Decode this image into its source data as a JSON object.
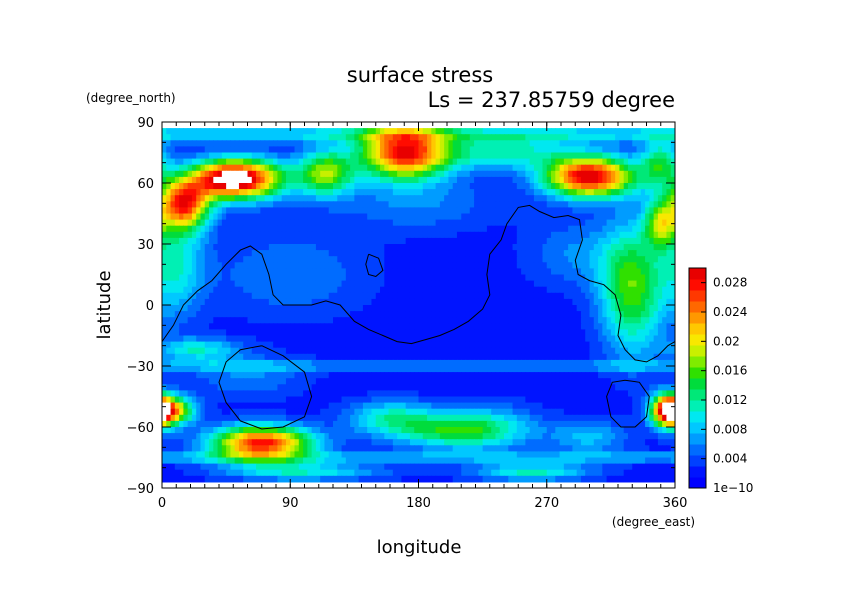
{
  "chart_data": {
    "type": "heatmap",
    "title": "surface stress",
    "subtitle": "Ls = 237.85759 degree",
    "xlabel": "longitude",
    "ylabel": "latitude",
    "x_units": "(degree_east)",
    "y_units": "(degree_north)",
    "xlim": [
      0,
      360
    ],
    "ylim": [
      -90,
      90
    ],
    "x_ticks": [
      "0",
      "90",
      "180",
      "270",
      "360"
    ],
    "y_ticks": [
      "90",
      "60",
      "30",
      "0",
      "−30",
      "−60",
      "−90"
    ],
    "x_tick_values": [
      0,
      90,
      180,
      270,
      360
    ],
    "y_tick_values": [
      90,
      60,
      30,
      0,
      -30,
      -60,
      -90
    ],
    "data_lat_range": [
      -87,
      87
    ],
    "colorbar": {
      "min": 0,
      "max": 0.03,
      "tick_values": [
        0,
        0.004,
        0.008,
        0.012,
        0.016,
        0.02,
        0.024,
        0.028
      ],
      "tick_labels": [
        "1e−10",
        "0.004",
        "0.008",
        "0.012",
        "0.016",
        "0.02",
        "0.024",
        "0.028"
      ],
      "colors": [
        "#0000ff",
        "#0014ff",
        "#0040ff",
        "#006cff",
        "#009cff",
        "#00c8ff",
        "#00e8f0",
        "#00f0b4",
        "#00e878",
        "#00dc3c",
        "#30e000",
        "#80ec00",
        "#c8f000",
        "#f8e800",
        "#ffc800",
        "#ff9800",
        "#ff6800",
        "#ff3800",
        "#ff0c00",
        "#e80000",
        "#ffffff"
      ]
    },
    "field": {
      "background": 0.002,
      "features": [
        {
          "lon": 55,
          "lat": 62,
          "slon": 22,
          "slat": 7,
          "amp": 0.028
        },
        {
          "lon": 15,
          "lat": 50,
          "slon": 13,
          "slat": 9,
          "amp": 0.024
        },
        {
          "lon": 40,
          "lat": 62,
          "slon": 14,
          "slat": 6,
          "amp": 0.006
        },
        {
          "lon": 170,
          "lat": 75,
          "slon": 22,
          "slat": 9,
          "amp": 0.026
        },
        {
          "lon": 300,
          "lat": 63,
          "slon": 22,
          "slat": 7,
          "amp": 0.028
        },
        {
          "lon": 115,
          "lat": 65,
          "slon": 14,
          "slat": 8,
          "amp": 0.015
        },
        {
          "lon": 240,
          "lat": 75,
          "slon": 35,
          "slat": 6,
          "amp": 0.009
        },
        {
          "lon": 350,
          "lat": 70,
          "slon": 10,
          "slat": 8,
          "amp": 0.011
        },
        {
          "lon": 330,
          "lat": 8,
          "slon": 16,
          "slat": 22,
          "amp": 0.014
        },
        {
          "lon": 350,
          "lat": 40,
          "slon": 8,
          "slat": 8,
          "amp": 0.013
        },
        {
          "lon": 10,
          "lat": 20,
          "slon": 14,
          "slat": 18,
          "amp": 0.008
        },
        {
          "lon": 180,
          "lat": 50,
          "slon": 40,
          "slat": 10,
          "amp": 0.004
        },
        {
          "lon": 290,
          "lat": 25,
          "slon": 25,
          "slat": 12,
          "amp": 0.004
        },
        {
          "lon": 70,
          "lat": -68,
          "slon": 25,
          "slat": 6,
          "amp": 0.026
        },
        {
          "lon": 5,
          "lat": -52,
          "slon": 12,
          "slat": 5,
          "amp": 0.021
        },
        {
          "lon": 355,
          "lat": -52,
          "slon": 8,
          "slat": 6,
          "amp": 0.022
        },
        {
          "lon": 25,
          "lat": -22,
          "slon": 20,
          "slat": 4,
          "amp": 0.008
        },
        {
          "lon": 200,
          "lat": -62,
          "slon": 30,
          "slat": 6,
          "amp": 0.01
        },
        {
          "lon": 160,
          "lat": -55,
          "slon": 22,
          "slat": 6,
          "amp": 0.008
        },
        {
          "lon": 230,
          "lat": -60,
          "slon": 25,
          "slat": 8,
          "amp": 0.006
        },
        {
          "lon": 300,
          "lat": -65,
          "slon": 20,
          "slat": 6,
          "amp": 0.006
        },
        {
          "lon": 260,
          "lat": -82,
          "slon": 30,
          "slat": 3,
          "amp": 0.009
        },
        {
          "lon": 100,
          "lat": -82,
          "slon": 40,
          "slat": 3,
          "amp": 0.008
        },
        {
          "lon": 90,
          "lat": 15,
          "slon": 40,
          "slat": 15,
          "amp": 0.004
        },
        {
          "lon": 60,
          "lat": -35,
          "slon": 30,
          "slat": 8,
          "amp": 0.004
        }
      ],
      "zonal_bands": [
        {
          "lat": 84,
          "slat": 3,
          "amp": 0.007
        },
        {
          "lat": -30,
          "slat": 2,
          "amp": 0.004
        },
        {
          "lat": -75,
          "slat": 2,
          "amp": 0.005
        }
      ]
    },
    "contours": [
      [
        [
          0,
          -18
        ],
        [
          8,
          -10
        ],
        [
          15,
          0
        ],
        [
          25,
          7
        ],
        [
          35,
          12
        ],
        [
          45,
          20
        ],
        [
          55,
          27
        ],
        [
          62,
          29
        ],
        [
          70,
          25
        ],
        [
          75,
          15
        ],
        [
          78,
          5
        ],
        [
          85,
          0
        ],
        [
          95,
          0
        ],
        [
          105,
          0
        ],
        [
          115,
          2
        ],
        [
          125,
          0
        ],
        [
          135,
          -8
        ],
        [
          145,
          -12
        ],
        [
          155,
          -15
        ],
        [
          165,
          -18
        ],
        [
          175,
          -19
        ],
        [
          185,
          -17
        ],
        [
          195,
          -15
        ],
        [
          205,
          -12
        ],
        [
          215,
          -8
        ],
        [
          225,
          -2
        ],
        [
          230,
          5
        ],
        [
          228,
          15
        ],
        [
          230,
          25
        ],
        [
          238,
          32
        ],
        [
          242,
          40
        ],
        [
          250,
          48
        ],
        [
          258,
          49
        ],
        [
          265,
          46
        ],
        [
          275,
          43
        ],
        [
          285,
          44
        ],
        [
          293,
          42
        ],
        [
          295,
          32
        ],
        [
          290,
          22
        ],
        [
          292,
          15
        ],
        [
          300,
          12
        ],
        [
          310,
          10
        ],
        [
          318,
          5
        ],
        [
          322,
          -5
        ],
        [
          320,
          -15
        ],
        [
          325,
          -22
        ],
        [
          332,
          -27
        ],
        [
          340,
          -28
        ],
        [
          348,
          -25
        ],
        [
          355,
          -20
        ],
        [
          360,
          -18
        ]
      ],
      [
        [
          70,
          -20
        ],
        [
          85,
          -25
        ],
        [
          100,
          -33
        ],
        [
          105,
          -45
        ],
        [
          100,
          -55
        ],
        [
          85,
          -60
        ],
        [
          70,
          -61
        ],
        [
          55,
          -57
        ],
        [
          45,
          -48
        ],
        [
          40,
          -38
        ],
        [
          45,
          -28
        ],
        [
          55,
          -22
        ],
        [
          70,
          -20
        ]
      ],
      [
        [
          325,
          -37
        ],
        [
          335,
          -38
        ],
        [
          342,
          -45
        ],
        [
          340,
          -55
        ],
        [
          332,
          -60
        ],
        [
          322,
          -60
        ],
        [
          315,
          -55
        ],
        [
          312,
          -45
        ],
        [
          316,
          -38
        ],
        [
          325,
          -37
        ]
      ],
      [
        [
          145,
          25
        ],
        [
          152,
          23
        ],
        [
          155,
          17
        ],
        [
          150,
          14
        ],
        [
          145,
          15
        ],
        [
          143,
          20
        ],
        [
          145,
          25
        ]
      ]
    ]
  }
}
